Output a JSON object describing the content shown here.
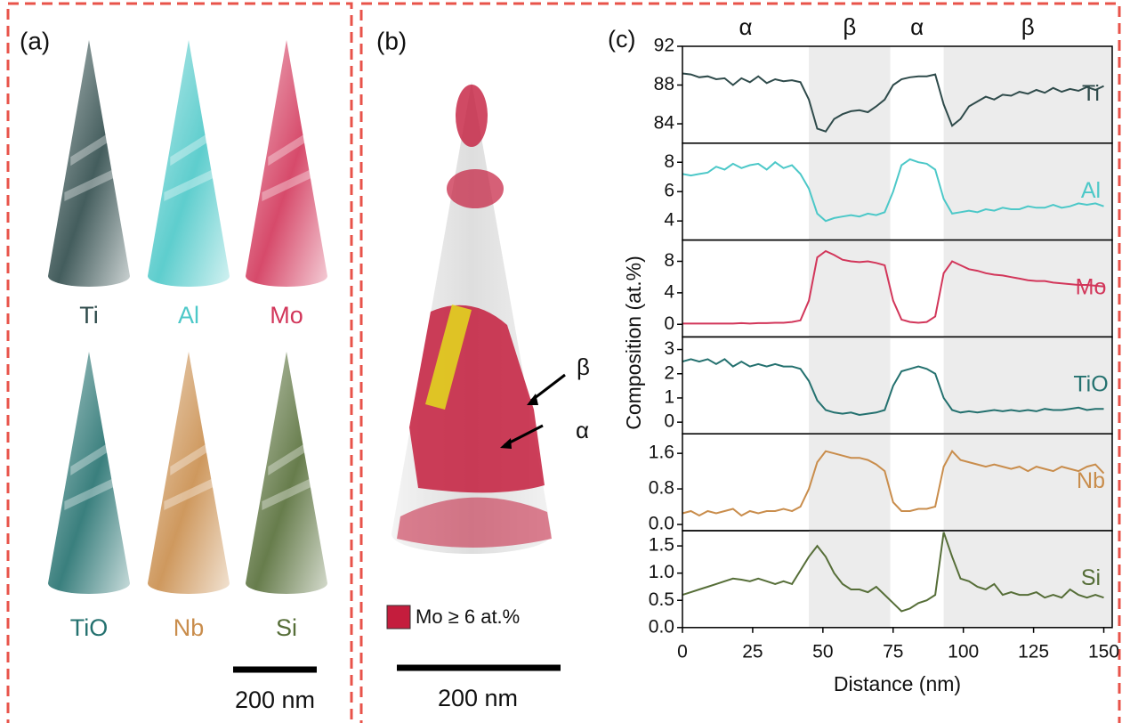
{
  "panel_a": {
    "label": "(a)",
    "elements": [
      {
        "name": "Ti",
        "color": "#2f4b4b"
      },
      {
        "name": "Al",
        "color": "#4cc8c8"
      },
      {
        "name": "Mo",
        "color": "#d2365a"
      },
      {
        "name": "TiO",
        "color": "#24716f"
      },
      {
        "name": "Nb",
        "color": "#c98d4c"
      },
      {
        "name": "Si",
        "color": "#566e38"
      }
    ],
    "scale_bar": "200 nm"
  },
  "panel_b": {
    "label": "(b)",
    "phases": [
      "α",
      "β"
    ],
    "legend": "Mo ≥ 6 at.%",
    "legend_color": "#c41d3d",
    "scale_bar": "200 nm"
  },
  "panel_c": {
    "label": "(c)",
    "ylabel": "Composition (at.%)",
    "shade_color": "#ececec",
    "phase_regions": [
      {
        "label": "α",
        "range": [
          0,
          45
        ],
        "shaded": false
      },
      {
        "label": "β",
        "range": [
          45,
          74
        ],
        "shaded": true
      },
      {
        "label": "α",
        "range": [
          74,
          93
        ],
        "shaded": false
      },
      {
        "label": "β",
        "range": [
          93,
          153
        ],
        "shaded": true
      }
    ]
  },
  "chart_data": [
    {
      "type": "line",
      "xlim": [
        0,
        153
      ],
      "ylim": [
        82,
        92
      ],
      "yticks": [
        84,
        88,
        92
      ],
      "x": [
        0,
        3,
        6,
        9,
        12,
        15,
        18,
        21,
        24,
        27,
        30,
        33,
        36,
        39,
        42,
        45,
        48,
        51,
        54,
        57,
        60,
        63,
        66,
        69,
        72,
        75,
        78,
        81,
        84,
        87,
        90,
        93,
        96,
        99,
        102,
        105,
        108,
        111,
        114,
        117,
        120,
        123,
        126,
        129,
        132,
        135,
        138,
        141,
        144,
        147,
        150
      ],
      "series": [
        {
          "name": "Ti",
          "color": "#2f4b4b",
          "values": [
            89.2,
            89.1,
            88.8,
            88.9,
            88.6,
            88.7,
            88.0,
            88.7,
            88.3,
            88.9,
            88.2,
            88.6,
            88.4,
            88.5,
            88.3,
            86.5,
            83.5,
            83.2,
            84.5,
            85.0,
            85.3,
            85.4,
            85.2,
            85.8,
            86.5,
            88.0,
            88.6,
            88.8,
            88.9,
            88.9,
            89.1,
            86.0,
            83.8,
            84.5,
            85.8,
            86.3,
            86.8,
            86.5,
            87.0,
            86.9,
            87.3,
            87.1,
            87.5,
            87.2,
            87.7,
            87.3,
            87.6,
            87.4,
            87.8,
            87.5,
            87.9
          ]
        }
      ]
    },
    {
      "type": "line",
      "xlim": [
        0,
        153
      ],
      "ylim": [
        2.7,
        9.3
      ],
      "yticks": [
        4,
        6,
        8
      ],
      "x": [
        0,
        3,
        6,
        9,
        12,
        15,
        18,
        21,
        24,
        27,
        30,
        33,
        36,
        39,
        42,
        45,
        48,
        51,
        54,
        57,
        60,
        63,
        66,
        69,
        72,
        75,
        78,
        81,
        84,
        87,
        90,
        93,
        96,
        99,
        102,
        105,
        108,
        111,
        114,
        117,
        120,
        123,
        126,
        129,
        132,
        135,
        138,
        141,
        144,
        147,
        150
      ],
      "series": [
        {
          "name": "Al",
          "color": "#4cc8c8",
          "values": [
            7.2,
            7.1,
            7.2,
            7.3,
            7.7,
            7.5,
            7.9,
            7.6,
            7.8,
            7.9,
            7.5,
            8.0,
            7.6,
            7.8,
            7.2,
            6.2,
            4.5,
            4.0,
            4.2,
            4.3,
            4.4,
            4.3,
            4.5,
            4.4,
            4.6,
            6.0,
            7.8,
            8.2,
            8.0,
            7.9,
            7.5,
            5.5,
            4.5,
            4.6,
            4.7,
            4.6,
            4.8,
            4.7,
            4.9,
            4.8,
            4.8,
            5.0,
            4.9,
            4.9,
            5.1,
            4.9,
            5.0,
            5.2,
            5.1,
            5.2,
            5.0
          ]
        }
      ]
    },
    {
      "type": "line",
      "xlim": [
        0,
        153
      ],
      "ylim": [
        -1.6,
        10.7
      ],
      "yticks": [
        0,
        4,
        8
      ],
      "x": [
        0,
        3,
        6,
        9,
        12,
        15,
        18,
        21,
        24,
        27,
        30,
        33,
        36,
        39,
        42,
        45,
        48,
        51,
        54,
        57,
        60,
        63,
        66,
        69,
        72,
        75,
        78,
        81,
        84,
        87,
        90,
        93,
        96,
        99,
        102,
        105,
        108,
        111,
        114,
        117,
        120,
        123,
        126,
        129,
        132,
        135,
        138,
        141,
        144,
        147,
        150
      ],
      "series": [
        {
          "name": "Mo",
          "color": "#d2365a",
          "values": [
            0.1,
            0.1,
            0.1,
            0.1,
            0.1,
            0.1,
            0.1,
            0.15,
            0.1,
            0.15,
            0.15,
            0.2,
            0.2,
            0.3,
            0.5,
            3.0,
            8.5,
            9.3,
            8.8,
            8.2,
            8.0,
            7.9,
            8.0,
            7.8,
            7.5,
            3.0,
            0.6,
            0.3,
            0.2,
            0.3,
            1.0,
            6.5,
            8.0,
            7.5,
            7.0,
            6.8,
            6.5,
            6.3,
            6.2,
            6.0,
            5.8,
            5.6,
            5.5,
            5.5,
            5.3,
            5.2,
            5.1,
            5.0,
            5.0,
            4.9,
            4.8
          ]
        }
      ]
    },
    {
      "type": "line",
      "xlim": [
        0,
        153
      ],
      "ylim": [
        -0.48,
        3.52
      ],
      "yticks": [
        0,
        1,
        2,
        3
      ],
      "x": [
        0,
        3,
        6,
        9,
        12,
        15,
        18,
        21,
        24,
        27,
        30,
        33,
        36,
        39,
        42,
        45,
        48,
        51,
        54,
        57,
        60,
        63,
        66,
        69,
        72,
        75,
        78,
        81,
        84,
        87,
        90,
        93,
        96,
        99,
        102,
        105,
        108,
        111,
        114,
        117,
        120,
        123,
        126,
        129,
        132,
        135,
        138,
        141,
        144,
        147,
        150
      ],
      "series": [
        {
          "name": "TiO",
          "color": "#24716f",
          "values": [
            2.5,
            2.6,
            2.5,
            2.6,
            2.4,
            2.6,
            2.3,
            2.5,
            2.3,
            2.4,
            2.3,
            2.4,
            2.3,
            2.3,
            2.2,
            1.7,
            0.9,
            0.5,
            0.4,
            0.35,
            0.4,
            0.3,
            0.35,
            0.4,
            0.5,
            1.5,
            2.1,
            2.2,
            2.3,
            2.2,
            2.0,
            1.0,
            0.5,
            0.4,
            0.45,
            0.4,
            0.45,
            0.5,
            0.45,
            0.5,
            0.45,
            0.5,
            0.45,
            0.55,
            0.5,
            0.5,
            0.55,
            0.6,
            0.5,
            0.55,
            0.55
          ]
        }
      ]
    },
    {
      "type": "line",
      "xlim": [
        0,
        153
      ],
      "ylim": [
        -0.14,
        2.04
      ],
      "yticks": [
        {
          "value": 0,
          "label": "0.0"
        },
        0.8,
        1.6
      ],
      "x": [
        0,
        3,
        6,
        9,
        12,
        15,
        18,
        21,
        24,
        27,
        30,
        33,
        36,
        39,
        42,
        45,
        48,
        51,
        54,
        57,
        60,
        63,
        66,
        69,
        72,
        75,
        78,
        81,
        84,
        87,
        90,
        93,
        96,
        99,
        102,
        105,
        108,
        111,
        114,
        117,
        120,
        123,
        126,
        129,
        132,
        135,
        138,
        141,
        144,
        147,
        150
      ],
      "series": [
        {
          "name": "Nb",
          "color": "#c98d4c",
          "values": [
            0.25,
            0.3,
            0.2,
            0.3,
            0.25,
            0.3,
            0.35,
            0.2,
            0.3,
            0.25,
            0.3,
            0.3,
            0.35,
            0.3,
            0.4,
            0.8,
            1.4,
            1.65,
            1.6,
            1.55,
            1.5,
            1.5,
            1.45,
            1.35,
            1.2,
            0.5,
            0.3,
            0.3,
            0.35,
            0.35,
            0.4,
            1.3,
            1.65,
            1.45,
            1.4,
            1.35,
            1.3,
            1.35,
            1.3,
            1.25,
            1.3,
            1.2,
            1.3,
            1.25,
            1.2,
            1.3,
            1.25,
            1.2,
            1.3,
            1.35,
            1.15
          ]
        }
      ]
    },
    {
      "type": "line",
      "xlim": [
        0,
        153
      ],
      "ylim": [
        0,
        1.78
      ],
      "yticks": [
        {
          "value": 0,
          "label": "0.0"
        },
        0.5,
        {
          "value": 1,
          "label": "1.0"
        },
        1.5
      ],
      "xticks": [
        0,
        25,
        50,
        75,
        100,
        125,
        150
      ],
      "xlabel": "Distance (nm)",
      "x": [
        0,
        3,
        6,
        9,
        12,
        15,
        18,
        21,
        24,
        27,
        30,
        33,
        36,
        39,
        42,
        45,
        48,
        51,
        54,
        57,
        60,
        63,
        66,
        69,
        72,
        75,
        78,
        81,
        84,
        87,
        90,
        93,
        96,
        99,
        102,
        105,
        108,
        111,
        114,
        117,
        120,
        123,
        126,
        129,
        132,
        135,
        138,
        141,
        144,
        147,
        150
      ],
      "series": [
        {
          "name": "Si",
          "color": "#566e38",
          "values": [
            0.6,
            0.65,
            0.7,
            0.75,
            0.8,
            0.85,
            0.9,
            0.88,
            0.85,
            0.9,
            0.85,
            0.8,
            0.85,
            0.8,
            1.05,
            1.3,
            1.5,
            1.3,
            1.0,
            0.8,
            0.7,
            0.7,
            0.65,
            0.75,
            0.6,
            0.45,
            0.3,
            0.35,
            0.45,
            0.5,
            0.6,
            1.75,
            1.3,
            0.9,
            0.85,
            0.75,
            0.7,
            0.8,
            0.6,
            0.65,
            0.6,
            0.6,
            0.65,
            0.55,
            0.6,
            0.55,
            0.7,
            0.6,
            0.55,
            0.6,
            0.55
          ]
        }
      ]
    }
  ]
}
